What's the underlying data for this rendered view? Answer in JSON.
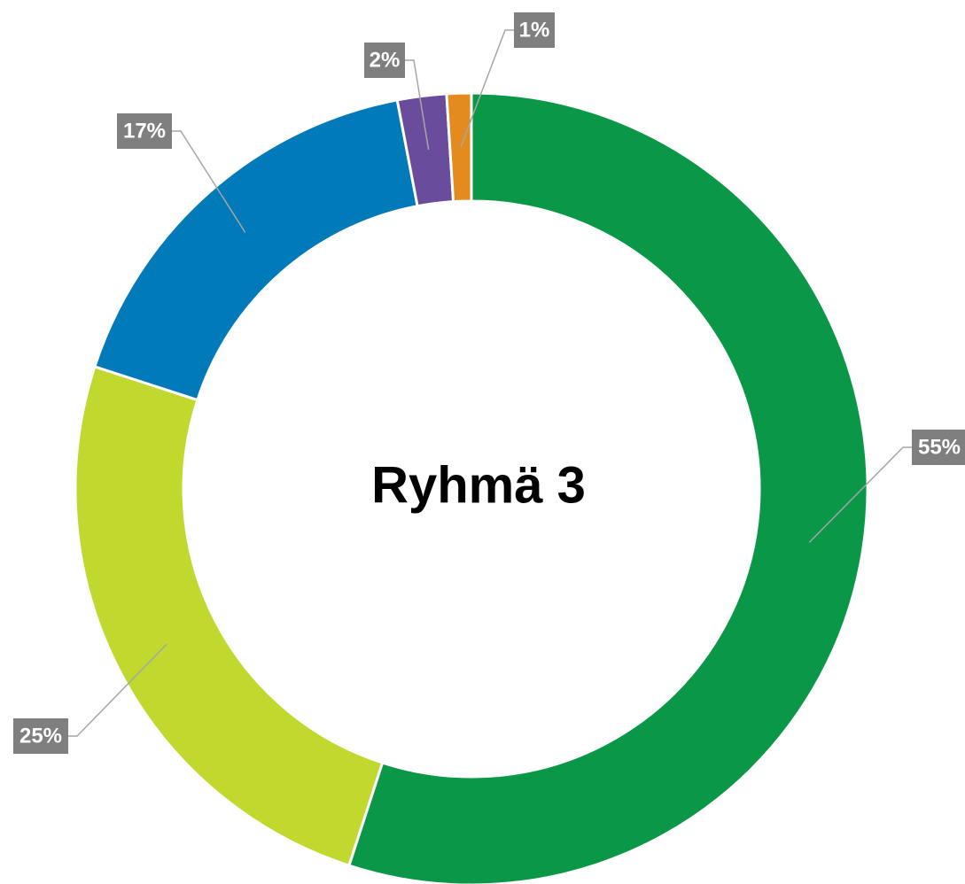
{
  "chart_data": {
    "type": "donut",
    "title": "Ryhmä 3",
    "values": [
      55,
      25,
      17,
      2,
      1
    ],
    "value_labels": [
      "55%",
      "25%",
      "17%",
      "2%",
      "1%"
    ],
    "colors": [
      "#0a9748",
      "#c1d82f",
      "#007ab8",
      "#6a4c9c",
      "#e38b1e"
    ]
  }
}
